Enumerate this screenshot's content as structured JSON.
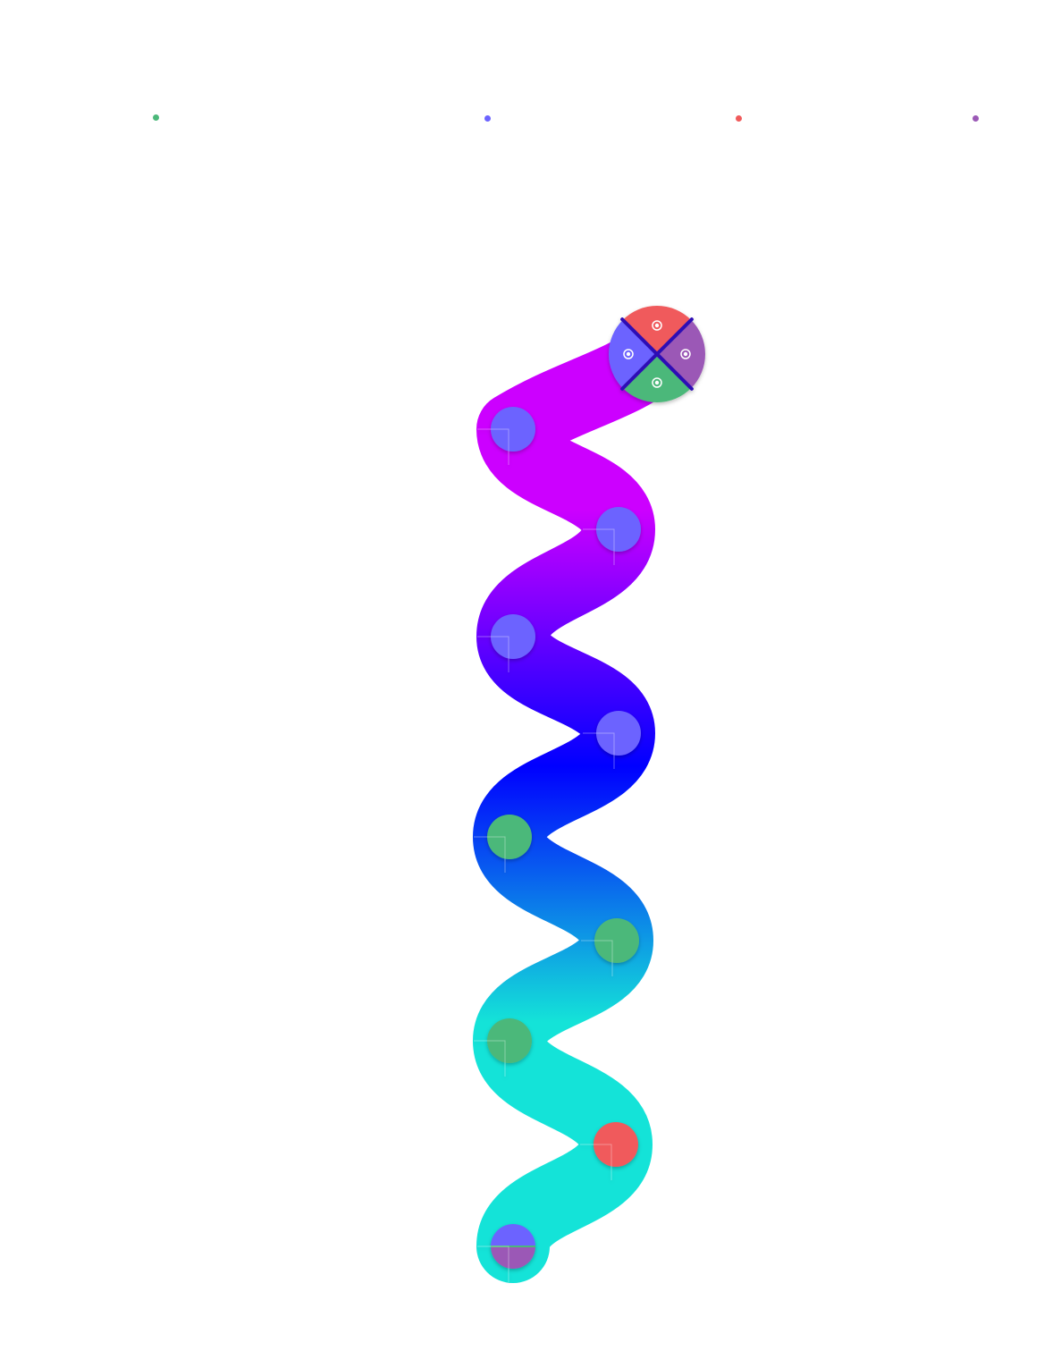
{
  "colors": {
    "green": "#4cb87a",
    "blue": "#6c63ff",
    "red": "#f05a5b",
    "purple": "#9b59b6",
    "path_start": "#cc00ff",
    "path_mid": "#0000ff",
    "path_end": "#14e3d8"
  },
  "legend": [
    {
      "color": "green"
    },
    {
      "color": "blue"
    },
    {
      "color": "red"
    },
    {
      "color": "purple"
    }
  ],
  "cap": {
    "quadrants": [
      "red",
      "purple",
      "green",
      "blue"
    ]
  },
  "nodes": [
    {
      "fill": [
        "blue"
      ]
    },
    {
      "fill": [
        "blue"
      ]
    },
    {
      "fill": [
        "blue"
      ]
    },
    {
      "fill": [
        "blue"
      ]
    },
    {
      "fill": [
        "green"
      ]
    },
    {
      "fill": [
        "green"
      ]
    },
    {
      "fill": [
        "green"
      ]
    },
    {
      "fill": [
        "red"
      ]
    },
    {
      "fill": [
        "blue",
        "purple"
      ]
    }
  ]
}
